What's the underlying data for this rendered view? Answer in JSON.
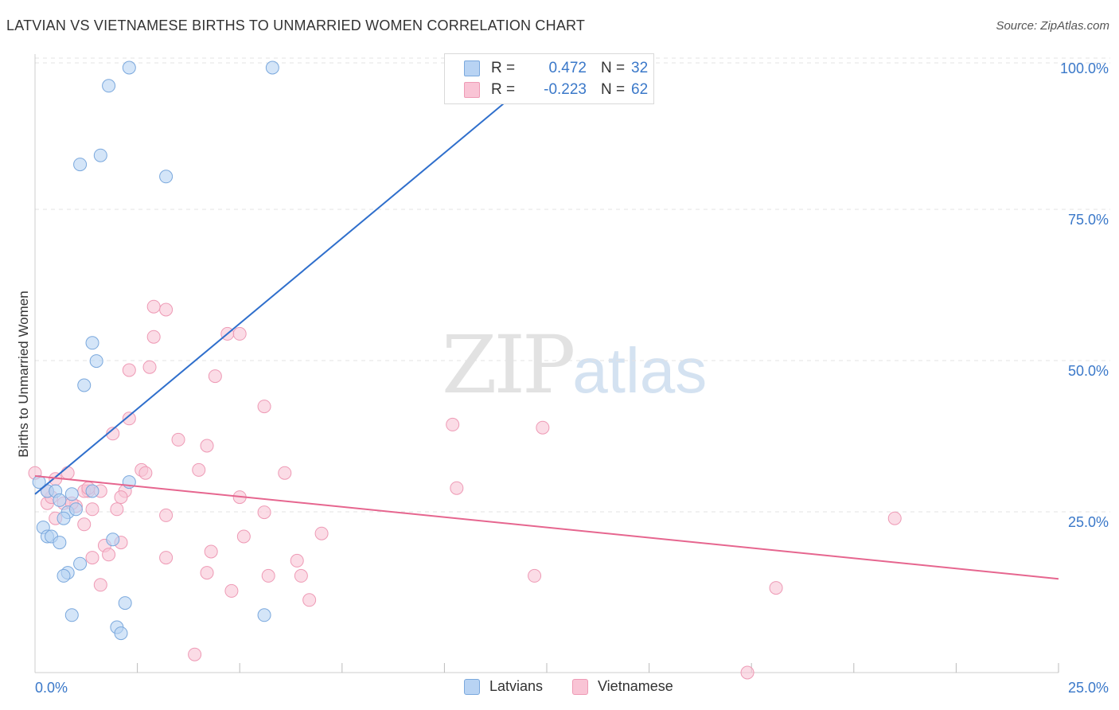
{
  "title": "LATVIAN VS VIETNAMESE BIRTHS TO UNMARRIED WOMEN CORRELATION CHART",
  "source": "Source: ZipAtlas.com",
  "watermark": {
    "zip": "ZIP",
    "atlas": "atlas"
  },
  "legend_top": {
    "latvians": {
      "r_label": "R =",
      "r_value": "0.472",
      "n_label": "N =",
      "n_value": "32"
    },
    "vietnamese": {
      "r_label": "R =",
      "r_value": "-0.223",
      "n_label": "N =",
      "n_value": "62"
    }
  },
  "colors": {
    "latvians_fill": "#b8d3f3",
    "latvians_stroke": "#7aa8dd",
    "latvians_line": "#2f6fcc",
    "vietnamese_fill": "#f9c4d5",
    "vietnamese_stroke": "#ee9ab5",
    "vietnamese_line": "#e6668f",
    "axis_text": "#3a78c9",
    "grid": "#e3e3e3"
  },
  "chart_data": {
    "type": "scatter",
    "title": "LATVIAN VS VIETNAMESE BIRTHS TO UNMARRIED WOMEN CORRELATION CHART",
    "xlabel": "",
    "ylabel": "Births to Unmarried Women",
    "xlim": [
      0,
      25
    ],
    "ylim": [
      0,
      100
    ],
    "x_tick_labels": [
      "0.0%",
      "25.0%"
    ],
    "y_tick_labels": [
      "25.0%",
      "50.0%",
      "75.0%",
      "100.0%"
    ],
    "y_ticks": [
      25,
      50,
      75,
      100
    ],
    "grid": true,
    "legend": "top-center and bottom",
    "series": [
      {
        "name": "Latvians",
        "r": 0.472,
        "n": 32,
        "trend": [
          [
            0.0,
            29.5
          ],
          [
            12.5,
            100.0
          ]
        ],
        "points": [
          [
            2.3,
            100.0
          ],
          [
            5.8,
            100.0
          ],
          [
            1.8,
            97.0
          ],
          [
            1.6,
            85.5
          ],
          [
            1.1,
            84.0
          ],
          [
            3.2,
            82.0
          ],
          [
            1.4,
            54.5
          ],
          [
            1.5,
            51.5
          ],
          [
            1.2,
            47.5
          ],
          [
            2.3,
            31.5
          ],
          [
            0.3,
            30.0
          ],
          [
            0.5,
            30.0
          ],
          [
            1.4,
            30.0
          ],
          [
            0.9,
            29.5
          ],
          [
            0.8,
            26.5
          ],
          [
            0.6,
            28.5
          ],
          [
            1.0,
            27.0
          ],
          [
            0.7,
            25.5
          ],
          [
            0.2,
            24.0
          ],
          [
            0.3,
            22.5
          ],
          [
            0.4,
            22.5
          ],
          [
            0.6,
            21.5
          ],
          [
            1.9,
            22.0
          ],
          [
            1.1,
            18.0
          ],
          [
            0.8,
            16.5
          ],
          [
            0.7,
            16.0
          ],
          [
            0.9,
            9.5
          ],
          [
            2.2,
            11.5
          ],
          [
            5.6,
            9.5
          ],
          [
            2.0,
            7.5
          ],
          [
            2.1,
            6.5
          ],
          [
            0.1,
            31.5
          ]
        ]
      },
      {
        "name": "Vietnamese",
        "r": -0.223,
        "n": 62,
        "trend": [
          [
            0.0,
            32.5
          ],
          [
            25.0,
            15.5
          ]
        ],
        "points": [
          [
            2.9,
            60.5
          ],
          [
            3.2,
            60.0
          ],
          [
            4.7,
            56.0
          ],
          [
            5.0,
            56.0
          ],
          [
            2.9,
            55.5
          ],
          [
            2.8,
            50.5
          ],
          [
            2.3,
            50.0
          ],
          [
            4.4,
            49.0
          ],
          [
            5.6,
            44.0
          ],
          [
            2.3,
            42.0
          ],
          [
            10.2,
            41.0
          ],
          [
            12.4,
            40.5
          ],
          [
            1.9,
            39.5
          ],
          [
            3.5,
            38.5
          ],
          [
            4.2,
            37.5
          ],
          [
            2.6,
            33.5
          ],
          [
            2.7,
            33.0
          ],
          [
            4.0,
            33.5
          ],
          [
            6.1,
            33.0
          ],
          [
            0.0,
            33.0
          ],
          [
            0.8,
            33.0
          ],
          [
            0.5,
            32.0
          ],
          [
            1.3,
            30.0
          ],
          [
            1.6,
            30.0
          ],
          [
            2.2,
            30.0
          ],
          [
            1.2,
            30.0
          ],
          [
            2.1,
            29.0
          ],
          [
            5.0,
            29.0
          ],
          [
            10.3,
            30.5
          ],
          [
            0.3,
            28.0
          ],
          [
            0.7,
            28.0
          ],
          [
            1.0,
            27.5
          ],
          [
            1.4,
            27.0
          ],
          [
            2.0,
            27.0
          ],
          [
            5.6,
            26.5
          ],
          [
            0.5,
            25.5
          ],
          [
            3.2,
            26.0
          ],
          [
            1.2,
            24.5
          ],
          [
            7.0,
            23.0
          ],
          [
            5.1,
            22.5
          ],
          [
            2.1,
            21.5
          ],
          [
            1.7,
            21.0
          ],
          [
            1.8,
            19.5
          ],
          [
            4.3,
            20.0
          ],
          [
            1.4,
            19.0
          ],
          [
            3.2,
            19.0
          ],
          [
            6.4,
            18.5
          ],
          [
            4.2,
            16.5
          ],
          [
            5.7,
            16.0
          ],
          [
            6.5,
            16.0
          ],
          [
            12.2,
            16.0
          ],
          [
            1.6,
            14.5
          ],
          [
            4.8,
            13.5
          ],
          [
            6.7,
            12.0
          ],
          [
            21.0,
            25.5
          ],
          [
            18.1,
            14.0
          ],
          [
            3.9,
            3.0
          ],
          [
            17.4,
            0.0
          ],
          [
            1.3,
            30.5
          ],
          [
            0.9,
            28.0
          ],
          [
            0.4,
            29.0
          ],
          [
            0.3,
            30.0
          ]
        ]
      }
    ]
  },
  "legend_bottom": {
    "latvians": "Latvians",
    "vietnamese": "Vietnamese"
  }
}
